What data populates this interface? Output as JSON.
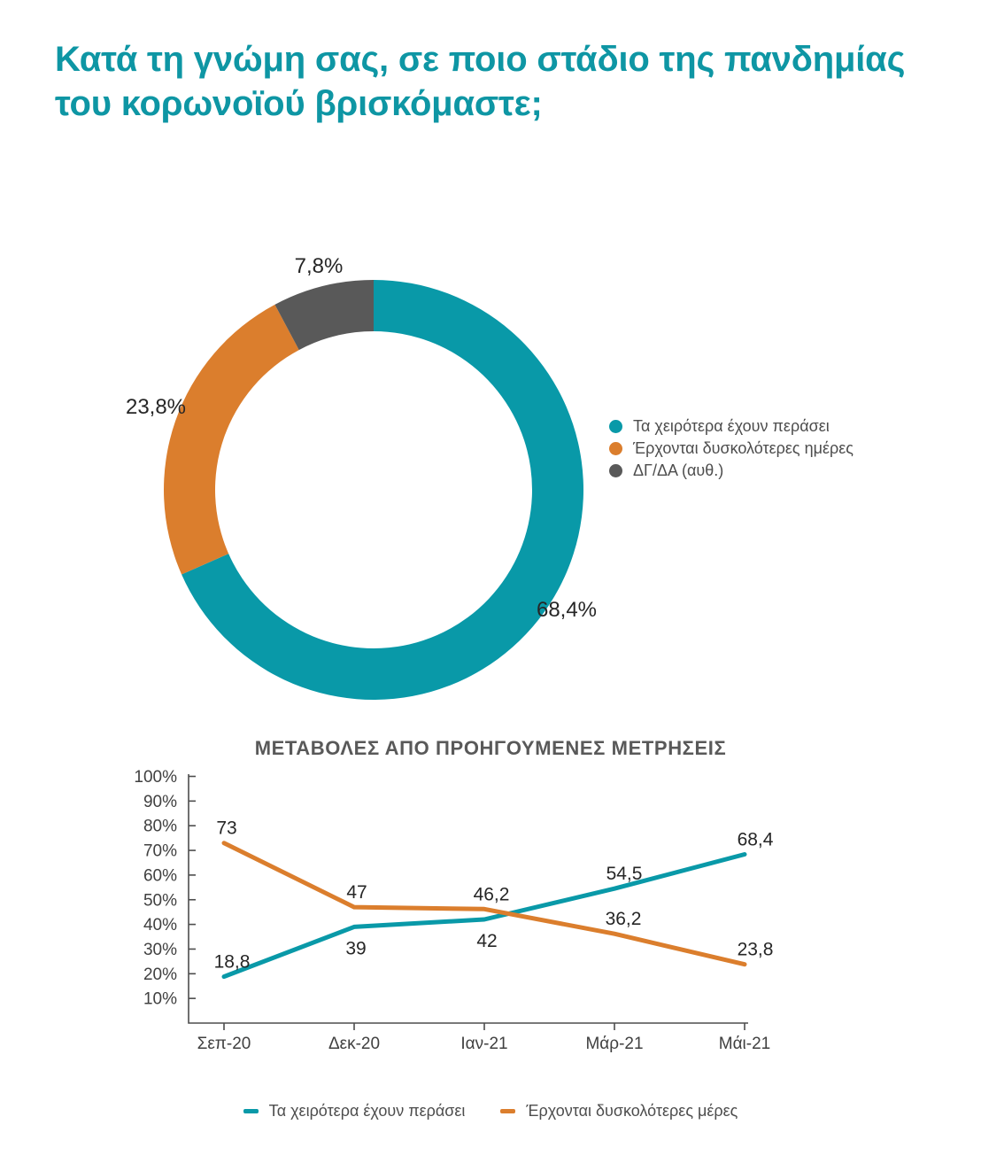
{
  "header": {
    "title_line1": "Κατά τη γνώμη σας, σε ποιο στάδιο της πανδημίας",
    "title_line2": "του κορωνοϊού βρισκόμαστε;",
    "title_color": "#0e96a4"
  },
  "chart_data": [
    {
      "type": "pie",
      "subtype": "donut",
      "start_angle": "12-oclock",
      "direction": "clockwise",
      "slices": [
        {
          "label": "Τα χειρότερα έχουν περάσει",
          "value": 68.4,
          "display": "68,4%",
          "color": "#0999a8"
        },
        {
          "label": "Έρχονται δυσκολότερες ημέρες",
          "value": 23.8,
          "display": "23,8%",
          "color": "#db7e2d"
        },
        {
          "label": "ΔΓ/ΔΑ (αυθ.)",
          "value": 7.8,
          "display": "7,8%",
          "color": "#595959"
        }
      ],
      "legend_position": "right"
    },
    {
      "type": "line",
      "title": "ΜΕΤΑΒΟΛΕΣ ΑΠΟ ΠΡΟΗΓΟΥΜΕΝΕΣ ΜΕΤΡΗΣΕΙΣ",
      "categories": [
        "Σεπ-20",
        "Δεκ-20",
        "Ιαν-21",
        "Μάρ-21",
        "Μάι-21"
      ],
      "series": [
        {
          "name": "Τα χειρότερα έχουν περάσει",
          "color": "#0999a8",
          "values": [
            18.8,
            39,
            42,
            54.5,
            68.4
          ],
          "point_labels": [
            "18,8",
            "39",
            "42",
            "54,5",
            "68,4"
          ]
        },
        {
          "name": "Έρχονται δυσκολότερες μέρες",
          "color": "#db7e2d",
          "values": [
            73,
            47,
            46.2,
            36.2,
            23.8
          ],
          "point_labels": [
            "73",
            "47",
            "46,2",
            "36,2",
            "23,8"
          ]
        }
      ],
      "y_ticks": [
        "10%",
        "20%",
        "30%",
        "40%",
        "50%",
        "60%",
        "70%",
        "80%",
        "90%",
        "100%"
      ],
      "ylim": [
        0,
        100
      ],
      "grid": false,
      "legend_position": "bottom"
    }
  ]
}
